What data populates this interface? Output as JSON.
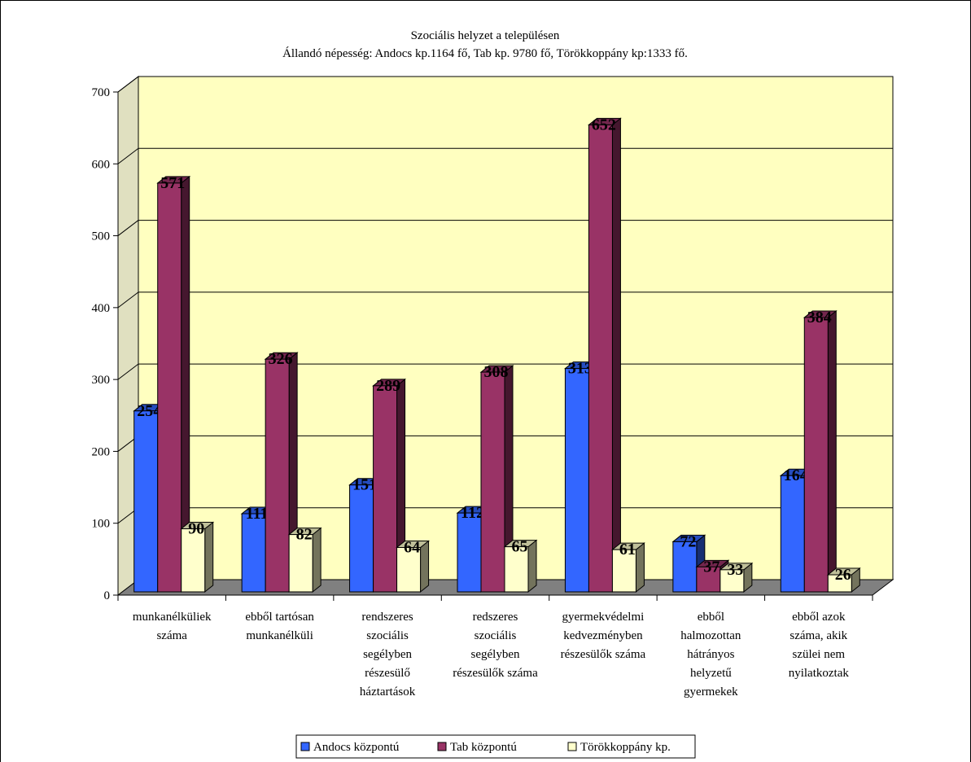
{
  "chart_data": {
    "type": "bar",
    "title": "Szociális helyzet a településen",
    "subtitle": "Állandó népesség: Andocs kp.1164 fő, Tab kp. 9780 fő, Törökkoppány kp:1333 fő.",
    "categories": [
      [
        "munkanélküliek",
        "száma"
      ],
      [
        "ebből tartósan",
        "munkanélküli"
      ],
      [
        "rendszeres",
        "szociális",
        "segélyben",
        "részesülő",
        "háztartások"
      ],
      [
        "redszeres",
        "szociális",
        "segélyben",
        "részesülők száma"
      ],
      [
        "gyermekvédelmi",
        "kedvezményben",
        "részesülők száma"
      ],
      [
        "ebből",
        "halmozottan",
        "hátrányos",
        "helyzetű",
        "gyermekek"
      ],
      [
        "ebből azok",
        "száma, akik",
        "szülei nem",
        "nyilatkoztak"
      ]
    ],
    "series": [
      {
        "name": "Andocs központú",
        "values": [
          254,
          111,
          151,
          112,
          313,
          72,
          164
        ],
        "color": "#3366ff"
      },
      {
        "name": "Tab központú",
        "values": [
          571,
          326,
          289,
          308,
          652,
          37,
          384
        ],
        "color": "#993366"
      },
      {
        "name": "Törökkoppány kp.",
        "values": [
          90,
          82,
          64,
          65,
          61,
          33,
          26
        ],
        "color": "#ffffcc"
      }
    ],
    "ylim": [
      0,
      700
    ],
    "yticks": [
      0,
      100,
      200,
      300,
      400,
      500,
      600,
      700
    ],
    "grid": true,
    "legend_position": "bottom",
    "wall_color": "#ffffc0",
    "floor_color": "#808080"
  }
}
